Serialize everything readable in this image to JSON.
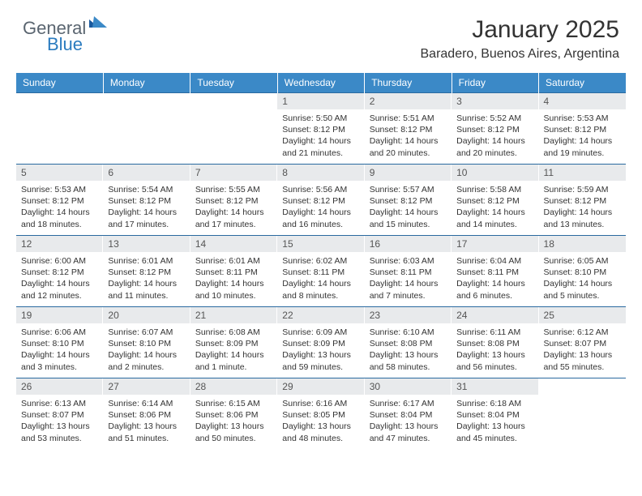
{
  "brand": {
    "part1": "General",
    "part2": "Blue"
  },
  "title": "January 2025",
  "location": "Baradero, Buenos Aires, Argentina",
  "colors": {
    "header_bg": "#3b89c7",
    "header_text": "#ffffff",
    "daynum_bg": "#e8eaec",
    "border": "#2a6aa0",
    "body_text": "#333333",
    "logo_gray": "#5a6570",
    "logo_blue": "#2a7bbf"
  },
  "weekdays": [
    "Sunday",
    "Monday",
    "Tuesday",
    "Wednesday",
    "Thursday",
    "Friday",
    "Saturday"
  ],
  "weeks": [
    [
      null,
      null,
      null,
      {
        "n": "1",
        "sr": "5:50 AM",
        "ss": "8:12 PM",
        "dl": "14 hours and 21 minutes."
      },
      {
        "n": "2",
        "sr": "5:51 AM",
        "ss": "8:12 PM",
        "dl": "14 hours and 20 minutes."
      },
      {
        "n": "3",
        "sr": "5:52 AM",
        "ss": "8:12 PM",
        "dl": "14 hours and 20 minutes."
      },
      {
        "n": "4",
        "sr": "5:53 AM",
        "ss": "8:12 PM",
        "dl": "14 hours and 19 minutes."
      }
    ],
    [
      {
        "n": "5",
        "sr": "5:53 AM",
        "ss": "8:12 PM",
        "dl": "14 hours and 18 minutes."
      },
      {
        "n": "6",
        "sr": "5:54 AM",
        "ss": "8:12 PM",
        "dl": "14 hours and 17 minutes."
      },
      {
        "n": "7",
        "sr": "5:55 AM",
        "ss": "8:12 PM",
        "dl": "14 hours and 17 minutes."
      },
      {
        "n": "8",
        "sr": "5:56 AM",
        "ss": "8:12 PM",
        "dl": "14 hours and 16 minutes."
      },
      {
        "n": "9",
        "sr": "5:57 AM",
        "ss": "8:12 PM",
        "dl": "14 hours and 15 minutes."
      },
      {
        "n": "10",
        "sr": "5:58 AM",
        "ss": "8:12 PM",
        "dl": "14 hours and 14 minutes."
      },
      {
        "n": "11",
        "sr": "5:59 AM",
        "ss": "8:12 PM",
        "dl": "14 hours and 13 minutes."
      }
    ],
    [
      {
        "n": "12",
        "sr": "6:00 AM",
        "ss": "8:12 PM",
        "dl": "14 hours and 12 minutes."
      },
      {
        "n": "13",
        "sr": "6:01 AM",
        "ss": "8:12 PM",
        "dl": "14 hours and 11 minutes."
      },
      {
        "n": "14",
        "sr": "6:01 AM",
        "ss": "8:11 PM",
        "dl": "14 hours and 10 minutes."
      },
      {
        "n": "15",
        "sr": "6:02 AM",
        "ss": "8:11 PM",
        "dl": "14 hours and 8 minutes."
      },
      {
        "n": "16",
        "sr": "6:03 AM",
        "ss": "8:11 PM",
        "dl": "14 hours and 7 minutes."
      },
      {
        "n": "17",
        "sr": "6:04 AM",
        "ss": "8:11 PM",
        "dl": "14 hours and 6 minutes."
      },
      {
        "n": "18",
        "sr": "6:05 AM",
        "ss": "8:10 PM",
        "dl": "14 hours and 5 minutes."
      }
    ],
    [
      {
        "n": "19",
        "sr": "6:06 AM",
        "ss": "8:10 PM",
        "dl": "14 hours and 3 minutes."
      },
      {
        "n": "20",
        "sr": "6:07 AM",
        "ss": "8:10 PM",
        "dl": "14 hours and 2 minutes."
      },
      {
        "n": "21",
        "sr": "6:08 AM",
        "ss": "8:09 PM",
        "dl": "14 hours and 1 minute."
      },
      {
        "n": "22",
        "sr": "6:09 AM",
        "ss": "8:09 PM",
        "dl": "13 hours and 59 minutes."
      },
      {
        "n": "23",
        "sr": "6:10 AM",
        "ss": "8:08 PM",
        "dl": "13 hours and 58 minutes."
      },
      {
        "n": "24",
        "sr": "6:11 AM",
        "ss": "8:08 PM",
        "dl": "13 hours and 56 minutes."
      },
      {
        "n": "25",
        "sr": "6:12 AM",
        "ss": "8:07 PM",
        "dl": "13 hours and 55 minutes."
      }
    ],
    [
      {
        "n": "26",
        "sr": "6:13 AM",
        "ss": "8:07 PM",
        "dl": "13 hours and 53 minutes."
      },
      {
        "n": "27",
        "sr": "6:14 AM",
        "ss": "8:06 PM",
        "dl": "13 hours and 51 minutes."
      },
      {
        "n": "28",
        "sr": "6:15 AM",
        "ss": "8:06 PM",
        "dl": "13 hours and 50 minutes."
      },
      {
        "n": "29",
        "sr": "6:16 AM",
        "ss": "8:05 PM",
        "dl": "13 hours and 48 minutes."
      },
      {
        "n": "30",
        "sr": "6:17 AM",
        "ss": "8:04 PM",
        "dl": "13 hours and 47 minutes."
      },
      {
        "n": "31",
        "sr": "6:18 AM",
        "ss": "8:04 PM",
        "dl": "13 hours and 45 minutes."
      },
      null
    ]
  ],
  "labels": {
    "sunrise": "Sunrise:",
    "sunset": "Sunset:",
    "daylight": "Daylight:"
  }
}
